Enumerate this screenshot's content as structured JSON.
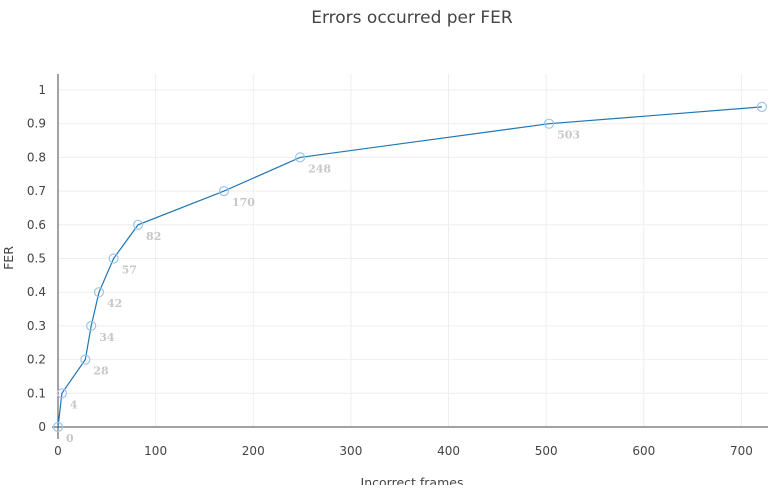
{
  "chart_data": {
    "type": "line",
    "title": "Errors occurred per FER",
    "xlabel": "Incorrect frames",
    "ylabel": "FER",
    "xlim": [
      0,
      725
    ],
    "ylim": [
      0,
      1.05
    ],
    "grid": true,
    "x_ticks": [
      0,
      100,
      200,
      300,
      400,
      500,
      600,
      700
    ],
    "y_ticks": [
      0,
      0.1,
      0.2,
      0.3,
      0.4,
      0.5,
      0.6,
      0.7,
      0.8,
      0.9,
      1
    ],
    "series": [
      {
        "x": [
          0,
          4,
          28,
          34,
          42,
          57,
          82,
          170,
          248,
          503,
          721
        ],
        "y": [
          0,
          0.1,
          0.2,
          0.3,
          0.4,
          0.5,
          0.6,
          0.7,
          0.8,
          0.9,
          0.95
        ],
        "point_labels": [
          "0",
          "4",
          "28",
          "34",
          "42",
          "57",
          "82",
          "170",
          "248",
          "503",
          ""
        ]
      }
    ],
    "colors": {
      "line": "#1f77b4",
      "marker": "#9ec5e8",
      "label": "#c8c8c8",
      "grid": "#eeeeee",
      "axis": "#444444"
    }
  }
}
